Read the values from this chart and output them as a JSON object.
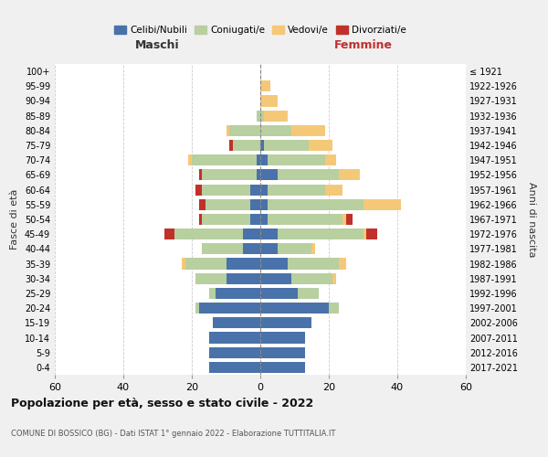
{
  "age_groups": [
    "0-4",
    "5-9",
    "10-14",
    "15-19",
    "20-24",
    "25-29",
    "30-34",
    "35-39",
    "40-44",
    "45-49",
    "50-54",
    "55-59",
    "60-64",
    "65-69",
    "70-74",
    "75-79",
    "80-84",
    "85-89",
    "90-94",
    "95-99",
    "100+"
  ],
  "birth_years": [
    "2017-2021",
    "2012-2016",
    "2007-2011",
    "2002-2006",
    "1997-2001",
    "1992-1996",
    "1987-1991",
    "1982-1986",
    "1977-1981",
    "1972-1976",
    "1967-1971",
    "1962-1966",
    "1957-1961",
    "1952-1956",
    "1947-1951",
    "1942-1946",
    "1937-1941",
    "1932-1936",
    "1927-1931",
    "1922-1926",
    "≤ 1921"
  ],
  "maschi": {
    "celibi": [
      15,
      15,
      15,
      14,
      18,
      13,
      10,
      10,
      5,
      5,
      3,
      3,
      3,
      1,
      1,
      0,
      0,
      0,
      0,
      0,
      0
    ],
    "coniugati": [
      0,
      0,
      0,
      0,
      1,
      2,
      9,
      12,
      12,
      20,
      14,
      13,
      14,
      16,
      19,
      8,
      9,
      1,
      0,
      0,
      0
    ],
    "vedovi": [
      0,
      0,
      0,
      0,
      0,
      0,
      0,
      1,
      0,
      0,
      0,
      0,
      0,
      0,
      1,
      0,
      1,
      0,
      0,
      0,
      0
    ],
    "divorziati": [
      0,
      0,
      0,
      0,
      0,
      0,
      0,
      0,
      0,
      3,
      1,
      2,
      2,
      1,
      0,
      1,
      0,
      0,
      0,
      0,
      0
    ]
  },
  "femmine": {
    "nubili": [
      13,
      13,
      13,
      15,
      20,
      11,
      9,
      8,
      5,
      5,
      2,
      2,
      2,
      5,
      2,
      1,
      0,
      0,
      0,
      0,
      0
    ],
    "coniugate": [
      0,
      0,
      0,
      0,
      3,
      6,
      12,
      15,
      10,
      25,
      22,
      28,
      17,
      18,
      17,
      13,
      9,
      1,
      0,
      0,
      0
    ],
    "vedove": [
      0,
      0,
      0,
      0,
      0,
      0,
      1,
      2,
      1,
      1,
      1,
      11,
      5,
      6,
      3,
      7,
      10,
      7,
      5,
      3,
      0
    ],
    "divorziate": [
      0,
      0,
      0,
      0,
      0,
      0,
      0,
      0,
      0,
      3,
      2,
      0,
      0,
      0,
      0,
      0,
      0,
      0,
      0,
      0,
      0
    ]
  },
  "colors": {
    "celibi": "#4a72aa",
    "coniugati": "#b8cfa0",
    "vedovi": "#f5c878",
    "divorziati": "#c0312b"
  },
  "xlim": 60,
  "title": "Popolazione per età, sesso e stato civile - 2022",
  "subtitle": "COMUNE DI BOSSICO (BG) - Dati ISTAT 1° gennaio 2022 - Elaborazione TUTTITALIA.IT",
  "ylabel_left": "Fasce di età",
  "ylabel_right": "Anni di nascita",
  "xlabel_maschi": "Maschi",
  "xlabel_femmine": "Femmine",
  "bg_color": "#f0f0f0",
  "plot_bg_color": "#ffffff"
}
